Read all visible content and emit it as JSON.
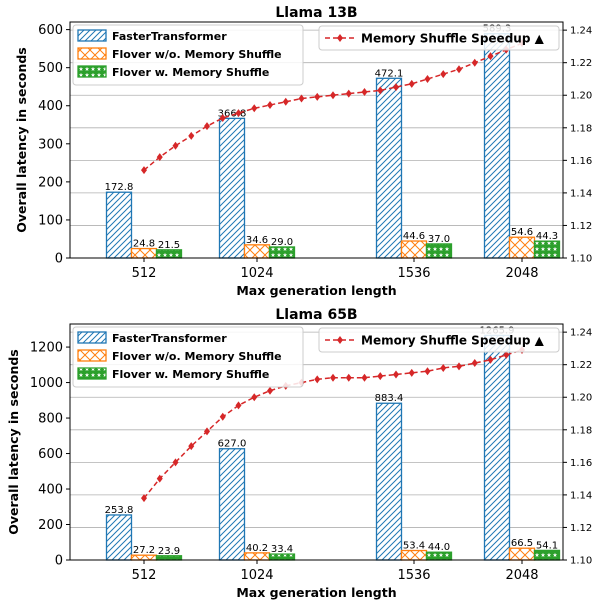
{
  "colors": {
    "ft": "#1f77b4",
    "flover_no_shuffle": "#ff7f0e",
    "flover_shuffle": "#2ca02c",
    "speedup": "#d62728",
    "grid": "#b0b0b0"
  },
  "chart_data": [
    {
      "type": "bar",
      "title": "Llama 13B",
      "xlabel": "Max generation length",
      "ylabel": "Overall latency in seconds",
      "categories": [
        "512",
        "1024",
        "1536",
        "2048"
      ],
      "ylim": [
        0,
        620
      ],
      "yticks": [
        0,
        100,
        200,
        300,
        400,
        500,
        600
      ],
      "y2lim": [
        1.1,
        1.245
      ],
      "y2ticks": [
        1.1,
        1.12,
        1.14,
        1.16,
        1.18,
        1.2,
        1.22,
        1.24
      ],
      "y2ticklabels": [
        "1.10",
        "1.12",
        "1.14",
        "1.16",
        "1.18",
        "1.20",
        "1.22",
        "1.24"
      ],
      "grid": true,
      "legend_placement": "top-left",
      "series": [
        {
          "name": "FasterTransformer",
          "values": [
            172.8,
            366.8,
            472.1,
            589.3
          ],
          "labels": [
            "172.8",
            "366.8",
            "472.1",
            "589.3"
          ]
        },
        {
          "name": "Flover w/o. Memory Shuffle",
          "values": [
            24.8,
            34.6,
            44.6,
            54.6
          ],
          "labels": [
            "24.8",
            "34.6",
            "44.6",
            "54.6"
          ]
        },
        {
          "name": "Flover w. Memory Shuffle",
          "values": [
            21.5,
            29.0,
            37.0,
            44.3
          ],
          "labels": [
            "21.5",
            "29.0",
            "37.0",
            "44.3"
          ]
        }
      ],
      "speedup_series": {
        "name": "Memory Shuffle Speedup ▲",
        "legend_placement": "top-right",
        "x": [
          512,
          576,
          640,
          704,
          768,
          832,
          896,
          960,
          1024,
          1088,
          1152,
          1216,
          1280,
          1344,
          1408,
          1472,
          1536,
          1600,
          1664,
          1728,
          1792,
          1856,
          1920,
          1984,
          2048
        ],
        "values": [
          1.154,
          1.162,
          1.169,
          1.175,
          1.181,
          1.186,
          1.189,
          1.192,
          1.194,
          1.196,
          1.198,
          1.199,
          1.2,
          1.201,
          1.202,
          1.203,
          1.205,
          1.207,
          1.21,
          1.213,
          1.216,
          1.22,
          1.224,
          1.228,
          1.232
        ]
      }
    },
    {
      "type": "bar",
      "title": "Llama 65B",
      "xlabel": "Max generation length",
      "ylabel": "Overall latency in seconds",
      "categories": [
        "512",
        "1024",
        "1536",
        "2048"
      ],
      "ylim": [
        0,
        1330
      ],
      "yticks": [
        0,
        200,
        400,
        600,
        800,
        1000,
        1200
      ],
      "y2lim": [
        1.1,
        1.245
      ],
      "y2ticks": [
        1.1,
        1.12,
        1.14,
        1.16,
        1.18,
        1.2,
        1.22,
        1.24
      ],
      "y2ticklabels": [
        "1.10",
        "1.12",
        "1.14",
        "1.16",
        "1.18",
        "1.20",
        "1.22",
        "1.24"
      ],
      "grid": true,
      "legend_placement": "top-left",
      "series": [
        {
          "name": "FasterTransformer",
          "values": [
            253.8,
            627.0,
            883.4,
            1265.9
          ],
          "labels": [
            "253.8",
            "627.0",
            "883.4",
            "1265.9"
          ]
        },
        {
          "name": "Flover w/o. Memory Shuffle",
          "values": [
            27.2,
            40.2,
            53.4,
            66.5
          ],
          "labels": [
            "27.2",
            "40.2",
            "53.4",
            "66.5"
          ]
        },
        {
          "name": "Flover w. Memory Shuffle",
          "values": [
            23.9,
            33.4,
            44.0,
            54.1
          ],
          "labels": [
            "23.9",
            "33.4",
            "44.0",
            "54.1"
          ]
        }
      ],
      "speedup_series": {
        "name": "Memory Shuffle Speedup ▲",
        "legend_placement": "top-right",
        "x": [
          512,
          576,
          640,
          704,
          768,
          832,
          896,
          960,
          1024,
          1088,
          1152,
          1216,
          1280,
          1344,
          1408,
          1472,
          1536,
          1600,
          1664,
          1728,
          1792,
          1856,
          1920,
          1984,
          2048
        ],
        "values": [
          1.138,
          1.15,
          1.16,
          1.17,
          1.179,
          1.188,
          1.195,
          1.2,
          1.204,
          1.207,
          1.209,
          1.211,
          1.212,
          1.212,
          1.212,
          1.213,
          1.214,
          1.215,
          1.216,
          1.218,
          1.219,
          1.221,
          1.223,
          1.226,
          1.229
        ]
      }
    }
  ]
}
